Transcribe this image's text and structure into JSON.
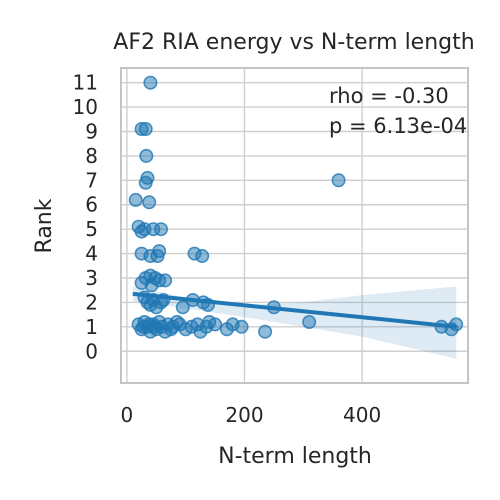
{
  "chart_data": {
    "type": "scatter",
    "title": "AF2 RIA energy vs N-term length",
    "xlabel": "N-term length",
    "ylabel": "Rank",
    "xlim": [
      -10,
      580
    ],
    "ylim": [
      -1.3,
      11.6
    ],
    "xticks": [
      0,
      200,
      400
    ],
    "yticks": [
      0,
      1,
      2,
      3,
      4,
      5,
      6,
      7,
      8,
      9,
      10,
      11
    ],
    "grid": true,
    "annotations": [
      "rho = -0.30",
      "p = 6.13e-04"
    ],
    "color": "#1f77b4",
    "points": [
      [
        40,
        11.0
      ],
      [
        25,
        9.1
      ],
      [
        32,
        9.1
      ],
      [
        33,
        8.0
      ],
      [
        35,
        7.1
      ],
      [
        32,
        6.9
      ],
      [
        360,
        7.0
      ],
      [
        15,
        6.2
      ],
      [
        38,
        6.1
      ],
      [
        20,
        5.1
      ],
      [
        30,
        5.0
      ],
      [
        45,
        5.0
      ],
      [
        58,
        5.0
      ],
      [
        25,
        4.9
      ],
      [
        25,
        4.0
      ],
      [
        40,
        3.9
      ],
      [
        55,
        4.1
      ],
      [
        52,
        3.9
      ],
      [
        115,
        4.0
      ],
      [
        128,
        3.9
      ],
      [
        25,
        2.8
      ],
      [
        32,
        3.0
      ],
      [
        40,
        3.1
      ],
      [
        48,
        3.0
      ],
      [
        55,
        2.9
      ],
      [
        65,
        2.9
      ],
      [
        42,
        2.7
      ],
      [
        30,
        2.2
      ],
      [
        35,
        2.0
      ],
      [
        40,
        1.9
      ],
      [
        45,
        2.1
      ],
      [
        50,
        1.8
      ],
      [
        58,
        2.0
      ],
      [
        62,
        2.1
      ],
      [
        95,
        1.8
      ],
      [
        112,
        2.1
      ],
      [
        130,
        2.0
      ],
      [
        138,
        1.9
      ],
      [
        250,
        1.8
      ],
      [
        20,
        1.1
      ],
      [
        25,
        0.9
      ],
      [
        30,
        1.2
      ],
      [
        35,
        1.0
      ],
      [
        40,
        0.8
      ],
      [
        45,
        1.1
      ],
      [
        50,
        0.9
      ],
      [
        55,
        1.2
      ],
      [
        60,
        1.0
      ],
      [
        65,
        0.8
      ],
      [
        70,
        1.1
      ],
      [
        75,
        0.9
      ],
      [
        85,
        1.2
      ],
      [
        100,
        0.9
      ],
      [
        110,
        1.0
      ],
      [
        120,
        1.1
      ],
      [
        125,
        0.8
      ],
      [
        135,
        1.0
      ],
      [
        140,
        1.2
      ],
      [
        150,
        1.1
      ],
      [
        170,
        0.9
      ],
      [
        180,
        1.1
      ],
      [
        195,
        1.0
      ],
      [
        235,
        0.8
      ],
      [
        310,
        1.2
      ],
      [
        535,
        1.0
      ],
      [
        552,
        0.9
      ],
      [
        560,
        1.1
      ],
      [
        28,
        1.0
      ],
      [
        38,
        1.1
      ],
      [
        48,
        1.0
      ],
      [
        78,
        1.0
      ],
      [
        90,
        1.1
      ]
    ],
    "fit_line": {
      "x": [
        10,
        560
      ],
      "y": [
        2.35,
        1.0
      ]
    },
    "ci_band": {
      "x": [
        10,
        100,
        200,
        300,
        400,
        560
      ],
      "lower": [
        2.05,
        1.75,
        1.4,
        1.0,
        0.6,
        -0.3
      ],
      "upper": [
        2.65,
        2.2,
        1.9,
        2.0,
        2.3,
        2.65
      ]
    }
  }
}
